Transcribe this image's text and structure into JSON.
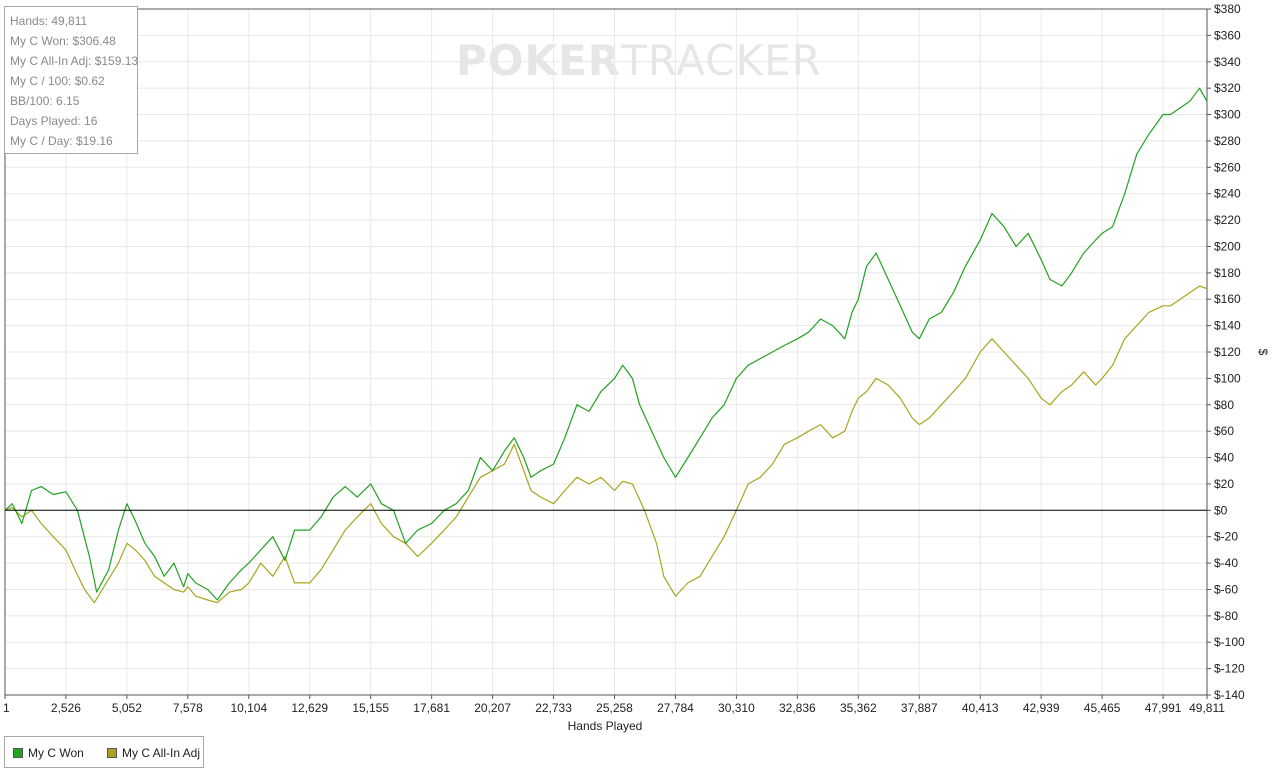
{
  "watermark": {
    "bold": "POKER",
    "light": "TRACKER"
  },
  "stats": [
    "Hands: 49,811",
    "My C Won: $306.48",
    "My C All-In Adj: $159.13",
    "My C / 100: $0.62",
    "BB/100: 6.15",
    "Days Played: 16",
    "My C / Day: $19.16"
  ],
  "legend": [
    {
      "name": "My C Won",
      "color": "#22a122"
    },
    {
      "name": "My C All-In Adj",
      "color": "#a8a41c"
    }
  ],
  "chart_data": {
    "type": "line",
    "xlabel": "Hands Played",
    "ylabel": "$",
    "xlim": [
      1,
      49811
    ],
    "ylim": [
      -140,
      380
    ],
    "x_ticks": [
      1,
      2526,
      5052,
      7578,
      10104,
      12629,
      15155,
      17681,
      20207,
      22733,
      25258,
      27784,
      30310,
      32836,
      35362,
      37887,
      40413,
      42939,
      45465,
      47991,
      49811
    ],
    "x_tick_labels": [
      "1",
      "2,526",
      "5,052",
      "7,578",
      "10,104",
      "12,629",
      "15,155",
      "17,681",
      "20,207",
      "22,733",
      "25,258",
      "27,784",
      "30,310",
      "32,836",
      "35,362",
      "37,887",
      "40,413",
      "42,939",
      "45,465",
      "47,991",
      "49,811"
    ],
    "y_ticks": [
      380,
      360,
      340,
      320,
      300,
      280,
      260,
      240,
      220,
      200,
      180,
      160,
      140,
      120,
      100,
      80,
      60,
      40,
      20,
      0,
      -20,
      -40,
      -60,
      -80,
      -100,
      -120,
      -140
    ],
    "y_tick_labels": [
      "$380",
      "$360",
      "$340",
      "$320",
      "$300",
      "$280",
      "$260",
      "$240",
      "$220",
      "$200",
      "$180",
      "$160",
      "$140",
      "$120",
      "$100",
      "$80",
      "$60",
      "$40",
      "$20",
      "$0",
      "$-20",
      "$-40",
      "$-60",
      "$-80",
      "$-100",
      "$-120",
      "$-140"
    ],
    "grid": true,
    "legend_position": "bottom-left",
    "series": [
      {
        "name": "My C Won",
        "color": "#22a122",
        "x": [
          1,
          300,
          700,
          1100,
          1500,
          2000,
          2526,
          3000,
          3500,
          3800,
          4300,
          4700,
          5052,
          5400,
          5800,
          6200,
          6600,
          7000,
          7400,
          7578,
          7900,
          8400,
          8800,
          9300,
          9800,
          10104,
          10600,
          11100,
          11600,
          12000,
          12629,
          13100,
          13600,
          14100,
          14600,
          15155,
          15600,
          16100,
          16600,
          17100,
          17681,
          18200,
          18700,
          19200,
          19700,
          20207,
          20700,
          21100,
          21500,
          21800,
          22200,
          22733,
          23200,
          23700,
          24200,
          24700,
          25258,
          25600,
          26000,
          26300,
          26800,
          27300,
          27784,
          28300,
          28800,
          29300,
          29800,
          30310,
          30800,
          31300,
          31800,
          32300,
          32836,
          33300,
          33800,
          34300,
          34800,
          35100,
          35362,
          35700,
          36100,
          36600,
          37100,
          37600,
          37887,
          38300,
          38800,
          39300,
          39800,
          40413,
          40900,
          41400,
          41900,
          42400,
          42939,
          43300,
          43800,
          44200,
          44700,
          45200,
          45465,
          45900,
          46400,
          46900,
          47400,
          47991,
          48300,
          48700,
          49100,
          49500,
          49811
        ],
        "y": [
          0,
          5,
          -10,
          15,
          18,
          12,
          14,
          0,
          -35,
          -62,
          -45,
          -15,
          5,
          -8,
          -25,
          -35,
          -50,
          -40,
          -58,
          -48,
          -55,
          -60,
          -68,
          -55,
          -45,
          -40,
          -30,
          -20,
          -38,
          -15,
          -15,
          -5,
          10,
          18,
          10,
          20,
          5,
          0,
          -25,
          -15,
          -10,
          0,
          5,
          15,
          40,
          30,
          45,
          55,
          40,
          25,
          30,
          35,
          55,
          80,
          75,
          90,
          100,
          110,
          100,
          80,
          60,
          40,
          25,
          40,
          55,
          70,
          80,
          100,
          110,
          115,
          120,
          125,
          130,
          135,
          145,
          140,
          130,
          150,
          160,
          185,
          195,
          175,
          155,
          135,
          130,
          145,
          150,
          165,
          185,
          205,
          225,
          215,
          200,
          210,
          190,
          175,
          170,
          180,
          195,
          205,
          210,
          215,
          240,
          270,
          285,
          300,
          300,
          305,
          310,
          320,
          310
        ]
      },
      {
        "name": "My C All-In Adj",
        "color": "#a8a41c",
        "x": [
          1,
          300,
          700,
          1100,
          1500,
          2000,
          2526,
          2900,
          3300,
          3700,
          4200,
          4700,
          5052,
          5400,
          5800,
          6200,
          6600,
          7000,
          7400,
          7578,
          7900,
          8400,
          8800,
          9300,
          9800,
          10104,
          10600,
          11100,
          11600,
          12000,
          12629,
          13100,
          13600,
          14100,
          14600,
          15155,
          15600,
          16100,
          16600,
          17100,
          17681,
          18200,
          18700,
          19200,
          19700,
          20207,
          20700,
          21100,
          21500,
          21800,
          22200,
          22733,
          23200,
          23700,
          24200,
          24700,
          25258,
          25600,
          26000,
          26500,
          27000,
          27300,
          27784,
          28300,
          28800,
          29300,
          29800,
          30310,
          30800,
          31300,
          31800,
          32300,
          32836,
          33300,
          33800,
          34300,
          34800,
          35100,
          35362,
          35700,
          36100,
          36600,
          37100,
          37600,
          37887,
          38300,
          38800,
          39300,
          39800,
          40413,
          40900,
          41400,
          41900,
          42400,
          42939,
          43300,
          43800,
          44200,
          44700,
          45200,
          45465,
          45900,
          46400,
          46900,
          47400,
          47991,
          48300,
          48700,
          49100,
          49500,
          49811
        ],
        "y": [
          0,
          2,
          -5,
          0,
          -10,
          -20,
          -30,
          -45,
          -60,
          -70,
          -55,
          -40,
          -25,
          -30,
          -38,
          -50,
          -55,
          -60,
          -62,
          -58,
          -65,
          -68,
          -70,
          -62,
          -60,
          -55,
          -40,
          -50,
          -35,
          -55,
          -55,
          -45,
          -30,
          -15,
          -5,
          5,
          -10,
          -20,
          -25,
          -35,
          -25,
          -15,
          -5,
          10,
          25,
          30,
          35,
          50,
          30,
          15,
          10,
          5,
          15,
          25,
          20,
          25,
          15,
          22,
          20,
          0,
          -25,
          -50,
          -65,
          -55,
          -50,
          -35,
          -20,
          0,
          20,
          25,
          35,
          50,
          55,
          60,
          65,
          55,
          60,
          75,
          85,
          90,
          100,
          95,
          85,
          70,
          65,
          70,
          80,
          90,
          100,
          120,
          130,
          120,
          110,
          100,
          85,
          80,
          90,
          95,
          105,
          95,
          100,
          110,
          130,
          140,
          150,
          155,
          155,
          160,
          165,
          170,
          168
        ]
      }
    ],
    "zero_line": 0
  }
}
